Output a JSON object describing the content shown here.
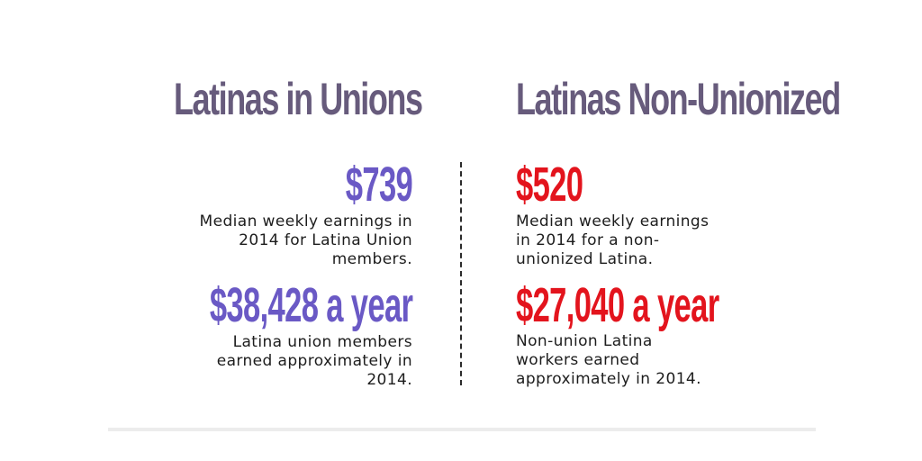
{
  "left": {
    "heading": "Latinas in Unions",
    "weekly": {
      "amount": "$739",
      "description": "Median weekly earnings in\n2014 for Latina Union\nmembers."
    },
    "yearly": {
      "amount": "$38,428 a year",
      "description": "Latina union members\nearned approximately in\n2014."
    }
  },
  "right": {
    "heading": "Latinas Non-Unionized",
    "weekly": {
      "amount": "$520",
      "description": "Median weekly earnings\nin 2014 for a non-\nunionized Latina."
    },
    "yearly": {
      "amount": "$27,040 a year",
      "description": "Non-union Latina\nworkers earned\napproximately in 2014."
    }
  },
  "colors": {
    "heading": "#675b7c",
    "union_accent": "#6a59c5",
    "non_union_accent": "#e3141d",
    "body_text": "#1d1d1d"
  }
}
